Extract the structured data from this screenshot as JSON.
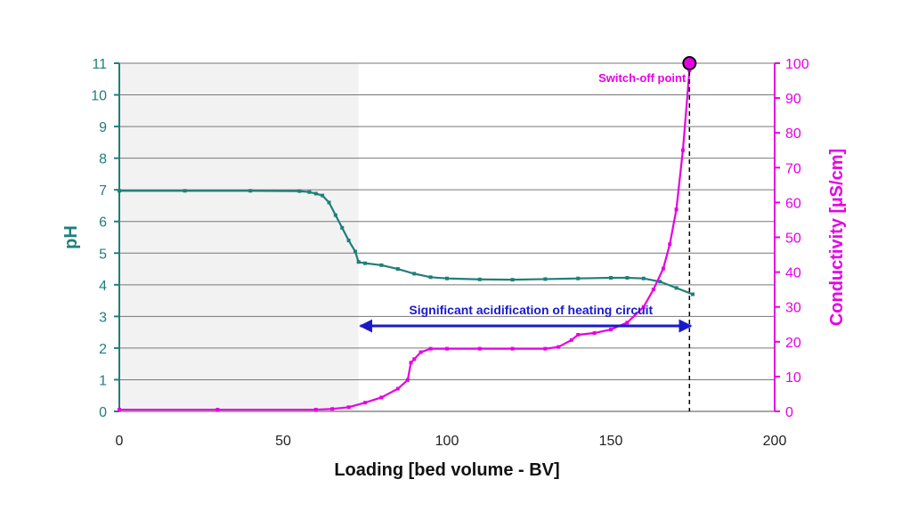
{
  "chart_data": {
    "type": "line",
    "xlabel": "Loading [bed volume - BV]",
    "ylabel": "pH",
    "y2label": "Conductivity [µS/cm]",
    "xlim": [
      0,
      200
    ],
    "ylim": [
      0,
      11
    ],
    "y2lim": [
      0,
      100
    ],
    "x_ticks": [
      "0",
      "50",
      "100",
      "150",
      "200"
    ],
    "y_ticks": [
      "0",
      "1",
      "2",
      "3",
      "4",
      "5",
      "6",
      "7",
      "8",
      "9",
      "10",
      "11"
    ],
    "y2_ticks": [
      "0",
      "10",
      "20",
      "30",
      "40",
      "50",
      "60",
      "70",
      "80",
      "90",
      "100"
    ],
    "grid": true,
    "shaded_region_x": [
      0,
      73
    ],
    "series": [
      {
        "axis": "left",
        "color": "#1f7f7a",
        "x": [
          0,
          20,
          40,
          55,
          58,
          60,
          62,
          64,
          66,
          68,
          70,
          72,
          73,
          75,
          80,
          85,
          90,
          95,
          100,
          110,
          120,
          130,
          140,
          150,
          155,
          160,
          165,
          170,
          175
        ],
        "y": [
          6.97,
          6.97,
          6.97,
          6.96,
          6.93,
          6.88,
          6.82,
          6.6,
          6.2,
          5.8,
          5.4,
          5.05,
          4.72,
          4.68,
          4.62,
          4.5,
          4.35,
          4.24,
          4.2,
          4.17,
          4.16,
          4.18,
          4.2,
          4.22,
          4.22,
          4.2,
          4.1,
          3.9,
          3.7
        ]
      },
      {
        "axis": "right",
        "color": "#e600e6",
        "x": [
          0,
          30,
          60,
          65,
          70,
          75,
          80,
          85,
          88,
          89,
          90,
          92,
          95,
          100,
          110,
          120,
          130,
          134,
          138,
          140,
          145,
          150,
          155,
          160,
          163,
          166,
          168,
          170,
          172,
          174
        ],
        "y": [
          0.5,
          0.5,
          0.5,
          0.7,
          1.2,
          2.5,
          4.0,
          6.5,
          9.0,
          14.0,
          15.0,
          17.0,
          18.0,
          18.0,
          18.0,
          18.0,
          18.0,
          18.5,
          20.5,
          22.0,
          22.5,
          23.5,
          25.5,
          30.0,
          35.0,
          41.0,
          48.0,
          58.0,
          75.0,
          98.0
        ]
      }
    ],
    "annotations": {
      "acidification_label": "Significant acidification of heating circuit",
      "acidification_x_range": [
        73,
        175
      ],
      "acidification_y": 2.7,
      "switch_off_label": "Switch-off point",
      "switch_off_x": 174,
      "switch_off_y": 11
    }
  }
}
